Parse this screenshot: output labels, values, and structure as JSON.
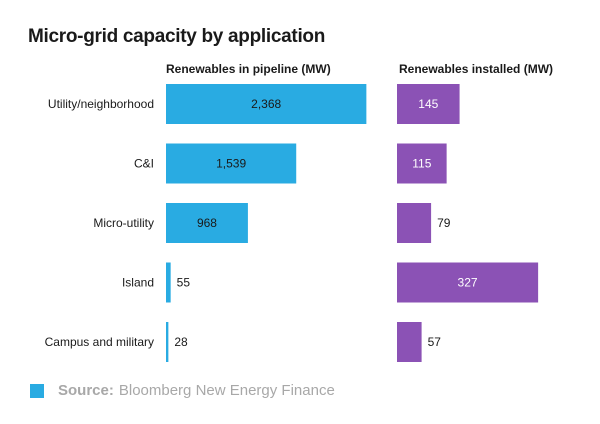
{
  "chart_data": {
    "type": "bar",
    "title": "Micro-grid capacity by application",
    "categories": [
      "Utility/neighborhood",
      "C&I",
      "Micro-utility",
      "Island",
      "Campus and military"
    ],
    "panels": [
      {
        "name": "Renewables in pipeline (MW)",
        "values": [
          2368,
          1539,
          968,
          55,
          28
        ],
        "labels": [
          "2,368",
          "1,539",
          "968",
          "55",
          "28"
        ],
        "color": "#29abe2",
        "xlim": [
          0,
          2600
        ]
      },
      {
        "name": "Renewables installed (MW)",
        "values": [
          145,
          115,
          79,
          327,
          57
        ],
        "labels": [
          "145",
          "115",
          "79",
          "327",
          "57"
        ],
        "color": "#8b52b5",
        "xlim": [
          0,
          380
        ]
      }
    ],
    "grid": false,
    "legend": "none"
  },
  "source": {
    "label": "Source:",
    "text": "Bloomberg New Energy Finance",
    "swatch_color": "#29abe2"
  }
}
